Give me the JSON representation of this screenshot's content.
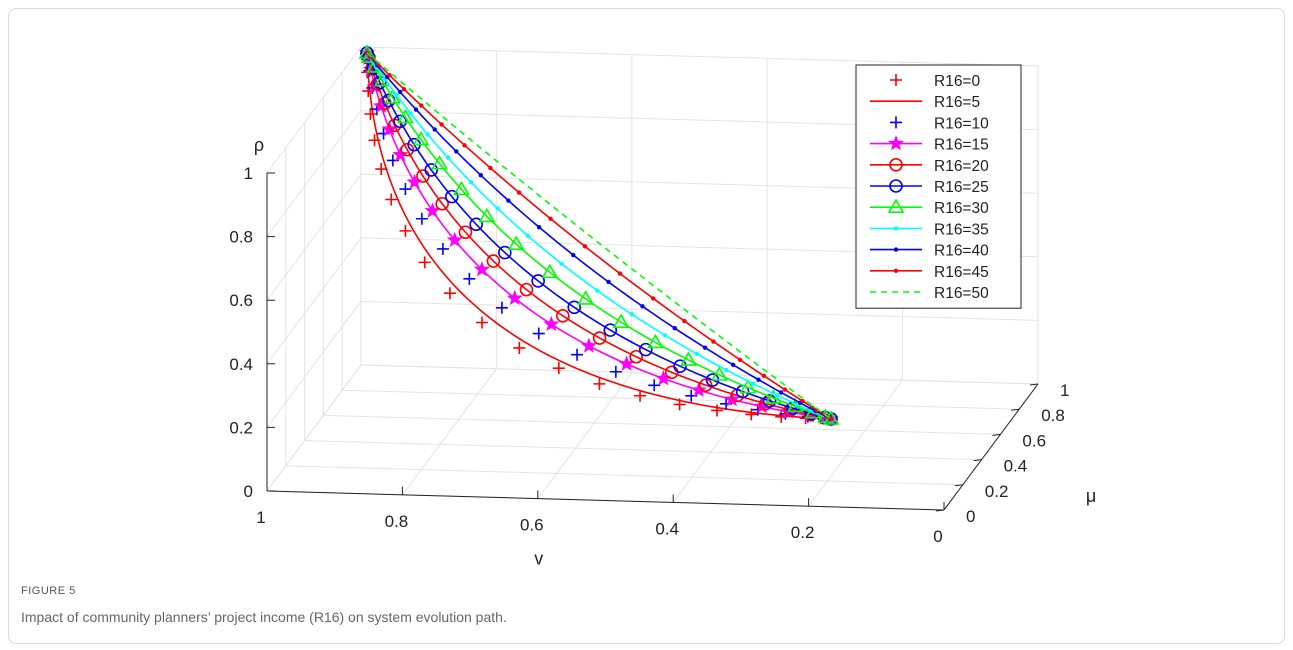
{
  "figure": {
    "label": "FIGURE 5",
    "caption": "Impact of community planners’ project income (R16) on system evolution path."
  },
  "chart_data": {
    "type": "line",
    "plot_kind": "3d-trajectories",
    "xlabel": "v",
    "ylabel": "μ",
    "zlabel": "ρ",
    "xlim": [
      0,
      1
    ],
    "ylim": [
      0,
      1
    ],
    "zlim": [
      0,
      1
    ],
    "x_ticks": [
      "1",
      "0.8",
      "0.6",
      "0.4",
      "0.2",
      "0"
    ],
    "y_ticks": [
      "0",
      "0.2",
      "0.4",
      "0.6",
      "0.8",
      "1"
    ],
    "z_ticks": [
      "0",
      "0.2",
      "0.4",
      "0.6",
      "0.8",
      "1"
    ],
    "grid": true,
    "legend_position": "top-right",
    "series": [
      {
        "name": "R16=0",
        "color": "#ff0000",
        "line": "none",
        "marker": "plus",
        "curve": 0.0
      },
      {
        "name": "R16=5",
        "color": "#ff0000",
        "line": "solid",
        "marker": "none",
        "curve": 0.06
      },
      {
        "name": "R16=10",
        "color": "#0000ff",
        "line": "none",
        "marker": "plus",
        "curve": 0.17
      },
      {
        "name": "R16=15",
        "color": "#ff00ff",
        "line": "solid",
        "marker": "star",
        "curve": 0.28
      },
      {
        "name": "R16=20",
        "color": "#ff0000",
        "line": "solid",
        "marker": "circle",
        "curve": 0.38
      },
      {
        "name": "R16=25",
        "color": "#0000ff",
        "line": "solid",
        "marker": "circle",
        "curve": 0.48
      },
      {
        "name": "R16=30",
        "color": "#00ff00",
        "line": "solid",
        "marker": "triangle",
        "curve": 0.58
      },
      {
        "name": "R16=35",
        "color": "#00ffff",
        "line": "solid",
        "marker": "dot",
        "curve": 0.68
      },
      {
        "name": "R16=40",
        "color": "#0000ff",
        "line": "solid",
        "marker": "dot",
        "curve": 0.78
      },
      {
        "name": "R16=45",
        "color": "#ff0000",
        "line": "solid",
        "marker": "dot",
        "curve": 0.88
      },
      {
        "name": "R16=50",
        "color": "#00ff00",
        "line": "dashed",
        "marker": "none",
        "curve": 0.96
      }
    ]
  }
}
